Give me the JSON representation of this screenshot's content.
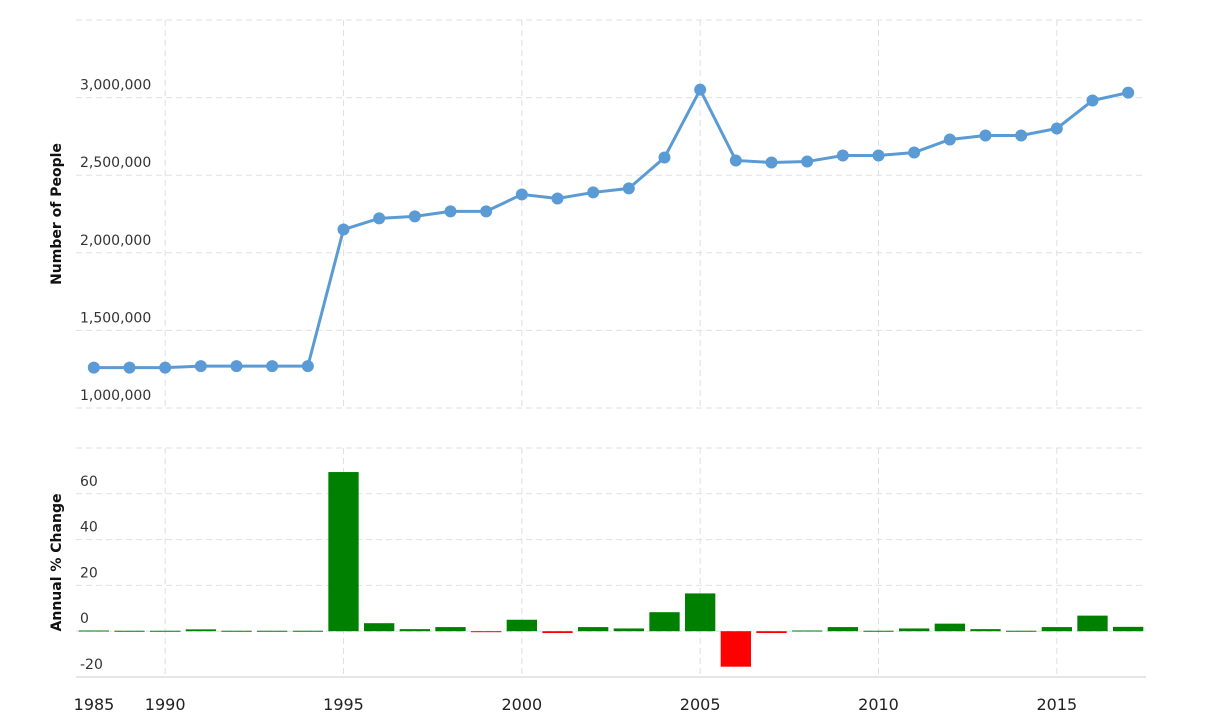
{
  "chart_data": [
    {
      "type": "line",
      "ylabel": "Number of People",
      "color": "#5b9bd5",
      "x": [
        1988,
        1989,
        1990,
        1991,
        1992,
        1993,
        1994,
        1995,
        1996,
        1997,
        1998,
        1999,
        2000,
        2001,
        2002,
        2003,
        2004,
        2005,
        2006,
        2007,
        2008,
        2009,
        2010,
        2011,
        2012,
        2013,
        2014,
        2015,
        2016,
        2017
      ],
      "values": [
        1260000,
        1260000,
        1260000,
        1270000,
        1270000,
        1270000,
        1270000,
        2150000,
        2222000,
        2235000,
        2267000,
        2267000,
        2376000,
        2350000,
        2389000,
        2415000,
        2614000,
        3051000,
        2595000,
        2582000,
        2588000,
        2627000,
        2627000,
        2646000,
        2730000,
        2756000,
        2756000,
        2801000,
        2981000,
        3032000
      ],
      "xlim": [
        1987.5,
        2017.5
      ],
      "xticks": [
        1985,
        1990,
        1995,
        2000,
        2005,
        2010,
        2015
      ],
      "ylim": [
        1000000,
        3500000
      ],
      "yticks": [
        {
          "value": 1000000,
          "label": "1,000,000"
        },
        {
          "value": 1500000,
          "label": "1,500,000"
        },
        {
          "value": 2000000,
          "label": "2,000,000"
        },
        {
          "value": 2500000,
          "label": "2,500,000"
        },
        {
          "value": 3000000,
          "label": "3,000,000"
        }
      ],
      "grid": true
    },
    {
      "type": "bar",
      "ylabel": "Annual % Change",
      "positive_color": "#008000",
      "negative_color": "#ff0000",
      "x": [
        1988,
        1989,
        1990,
        1991,
        1992,
        1993,
        1994,
        1995,
        1996,
        1997,
        1998,
        1999,
        2000,
        2001,
        2002,
        2003,
        2004,
        2005,
        2006,
        2007,
        2008,
        2009,
        2010,
        2011,
        2012,
        2013,
        2014,
        2015,
        2016,
        2017
      ],
      "values": [
        0.3,
        0.2,
        0.2,
        0.8,
        0.2,
        0.2,
        0.2,
        69.5,
        3.5,
        0.9,
        1.8,
        -0.1,
        5,
        -0.8,
        1.8,
        1.2,
        8.3,
        16.5,
        -15.5,
        -0.8,
        0.3,
        1.8,
        0.2,
        1.2,
        3.3,
        0.9,
        0.2,
        1.8,
        6.8,
        1.9
      ],
      "xlim": [
        1987.5,
        2017.5
      ],
      "xticks": [
        1985,
        1990,
        1995,
        2000,
        2005,
        2010,
        2015
      ],
      "ylim": [
        -20,
        80
      ],
      "yticks": [
        -20,
        0,
        20,
        40,
        60
      ],
      "grid": true
    }
  ]
}
